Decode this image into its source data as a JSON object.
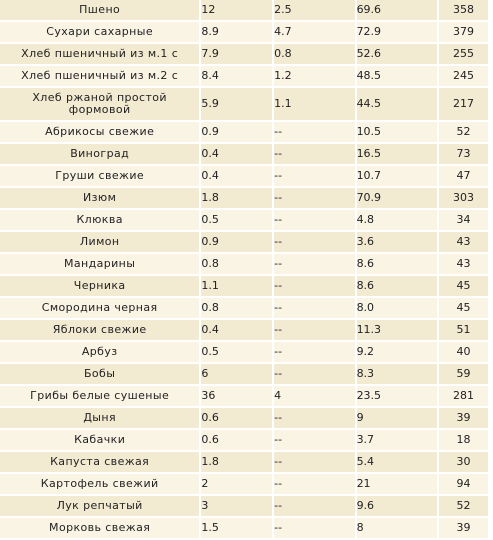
{
  "rows": [
    {
      "name": "Пшено",
      "protein": "12",
      "fat": "2.5",
      "carbs": "69.6",
      "kcal": "358"
    },
    {
      "name": "Сухари сахарные",
      "protein": "8.9",
      "fat": "4.7",
      "carbs": "72.9",
      "kcal": "379"
    },
    {
      "name": "Хлеб пшеничный из м.1 с",
      "protein": "7.9",
      "fat": "0.8",
      "carbs": "52.6",
      "kcal": "255"
    },
    {
      "name": "Хлеб пшеничный из м.2 с",
      "protein": "8.4",
      "fat": "1.2",
      "carbs": "48.5",
      "kcal": "245"
    },
    {
      "name": "Хлеб ржаной простой формовой",
      "protein": "5.9",
      "fat": "1.1",
      "carbs": "44.5",
      "kcal": "217"
    },
    {
      "name": "Абрикосы свежие",
      "protein": "0.9",
      "fat": "--",
      "carbs": "10.5",
      "kcal": "52"
    },
    {
      "name": "Виноград",
      "protein": "0.4",
      "fat": "--",
      "carbs": "16.5",
      "kcal": "73"
    },
    {
      "name": "Груши свежие",
      "protein": "0.4",
      "fat": "--",
      "carbs": "10.7",
      "kcal": "47"
    },
    {
      "name": "Изюм",
      "protein": "1.8",
      "fat": "--",
      "carbs": "70.9",
      "kcal": "303"
    },
    {
      "name": "Клюква",
      "protein": "0.5",
      "fat": "--",
      "carbs": "4.8",
      "kcal": "34"
    },
    {
      "name": "Лимон",
      "protein": "0.9",
      "fat": "--",
      "carbs": "3.6",
      "kcal": "43"
    },
    {
      "name": "Мандарины",
      "protein": "0.8",
      "fat": "--",
      "carbs": "8.6",
      "kcal": "43"
    },
    {
      "name": "Черника",
      "protein": "1.1",
      "fat": "--",
      "carbs": "8.6",
      "kcal": "45"
    },
    {
      "name": "Смородина черная",
      "protein": "0.8",
      "fat": "--",
      "carbs": "8.0",
      "kcal": "45"
    },
    {
      "name": "Яблоки свежие",
      "protein": "0.4",
      "fat": "--",
      "carbs": "11.3",
      "kcal": "51"
    },
    {
      "name": "Арбуз",
      "protein": "0.5",
      "fat": "--",
      "carbs": "9.2",
      "kcal": "40"
    },
    {
      "name": "Бобы",
      "protein": "6",
      "fat": "--",
      "carbs": "8.3",
      "kcal": "59"
    },
    {
      "name": "Грибы белые сушеные",
      "protein": "36",
      "fat": "4",
      "carbs": "23.5",
      "kcal": "281"
    },
    {
      "name": "Дыня",
      "protein": "0.6",
      "fat": "--",
      "carbs": "9",
      "kcal": "39"
    },
    {
      "name": "Кабачки",
      "protein": "0.6",
      "fat": "--",
      "carbs": "3.7",
      "kcal": "18"
    },
    {
      "name": "Капуста свежая",
      "protein": "1.8",
      "fat": "--",
      "carbs": "5.4",
      "kcal": "30"
    },
    {
      "name": "Картофель свежий",
      "protein": "2",
      "fat": "--",
      "carbs": "21",
      "kcal": "94"
    },
    {
      "name": "Лук репчатый",
      "protein": "3",
      "fat": "--",
      "carbs": "9.6",
      "kcal": "52"
    },
    {
      "name": "Морковь свежая",
      "protein": "1.5",
      "fat": "--",
      "carbs": "8",
      "kcal": "39"
    }
  ],
  "colors": {
    "row_odd": "#f3ead2",
    "row_even": "#faf4e5",
    "text": "#222222"
  }
}
